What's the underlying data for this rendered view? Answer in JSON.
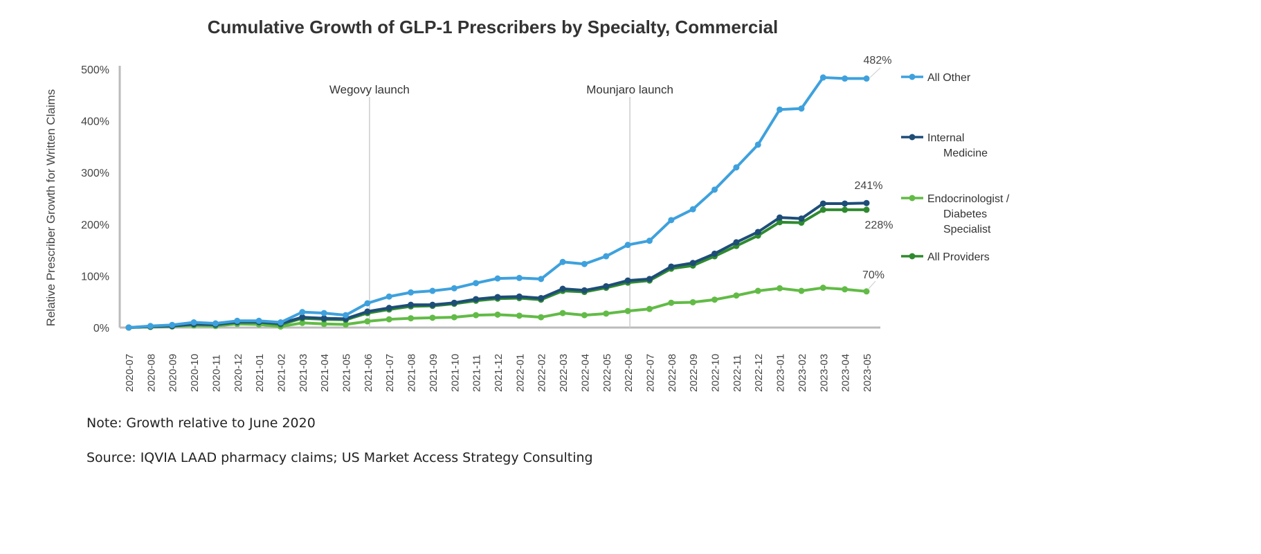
{
  "chart_data": {
    "type": "line",
    "title": "Cumulative Growth of GLP-1 Prescribers by Specialty, Commercial",
    "xlabel": "",
    "ylabel": "Relative Prescriber Growth for Written Claims",
    "ylim": [
      0,
      500
    ],
    "yticks": [
      "0%",
      "100%",
      "200%",
      "300%",
      "400%",
      "500%"
    ],
    "grid": false,
    "legend_position": "right",
    "x": [
      "2020-07",
      "2020-08",
      "2020-09",
      "2020-10",
      "2020-11",
      "2020-12",
      "2021-01",
      "2021-02",
      "2021-03",
      "2021-04",
      "2021-05",
      "2021-06",
      "2021-07",
      "2021-08",
      "2021-09",
      "2021-10",
      "2021-11",
      "2021-12",
      "2022-01",
      "2022-02",
      "2022-03",
      "2022-04",
      "2022-05",
      "2022-06",
      "2022-07",
      "2022-08",
      "2022-09",
      "2022-10",
      "2022-11",
      "2022-12",
      "2023-01",
      "2023-02",
      "2023-03",
      "2023-04",
      "2023-05"
    ],
    "series": [
      {
        "name": "All Other",
        "color": "#3ea1dd",
        "end_label": "482%",
        "values": [
          0,
          3,
          5,
          10,
          8,
          13,
          13,
          10,
          30,
          28,
          24,
          47,
          60,
          68,
          71,
          76,
          86,
          95,
          96,
          94,
          127,
          123,
          138,
          160,
          168,
          208,
          229,
          267,
          310,
          354,
          422,
          424,
          484,
          482,
          482
        ]
      },
      {
        "name": "Internal Medicine",
        "color": "#1e4d78",
        "end_label": "241%",
        "values": [
          0,
          2,
          3,
          7,
          6,
          11,
          11,
          8,
          20,
          18,
          17,
          31,
          38,
          44,
          44,
          48,
          55,
          59,
          60,
          57,
          75,
          72,
          80,
          91,
          94,
          118,
          125,
          143,
          165,
          185,
          213,
          211,
          240,
          240,
          241
        ]
      },
      {
        "name": "Endocrinologist / Diabetes Specialist",
        "color": "#62bb46",
        "end_label": "70%",
        "values": [
          0,
          1,
          2,
          4,
          3,
          7,
          6,
          2,
          9,
          7,
          6,
          12,
          16,
          18,
          19,
          20,
          24,
          25,
          23,
          20,
          28,
          24,
          27,
          32,
          36,
          48,
          49,
          54,
          62,
          71,
          76,
          71,
          77,
          74,
          70
        ]
      },
      {
        "name": "All Providers",
        "color": "#2f8a2f",
        "end_label": "228%",
        "values": [
          0,
          2,
          3,
          6,
          5,
          10,
          10,
          6,
          18,
          16,
          15,
          28,
          35,
          41,
          42,
          46,
          52,
          56,
          57,
          54,
          71,
          69,
          77,
          87,
          91,
          114,
          120,
          138,
          158,
          178,
          204,
          203,
          228,
          228,
          228
        ]
      }
    ],
    "legend_labels": [
      [
        "All Other"
      ],
      [
        "Internal",
        "Medicine"
      ],
      [
        "Endocrinologist /",
        "Diabetes",
        "Specialist"
      ],
      [
        "All Providers"
      ]
    ],
    "annotations": [
      {
        "text": "Wegovy launch",
        "x": "2021-06"
      },
      {
        "text": "Mounjaro launch",
        "x": "2022-06"
      }
    ]
  },
  "notes": {
    "note": "Note: Growth relative to June 2020",
    "source": "Source: IQVIA LAAD pharmacy claims; US Market Access Strategy Consulting"
  }
}
